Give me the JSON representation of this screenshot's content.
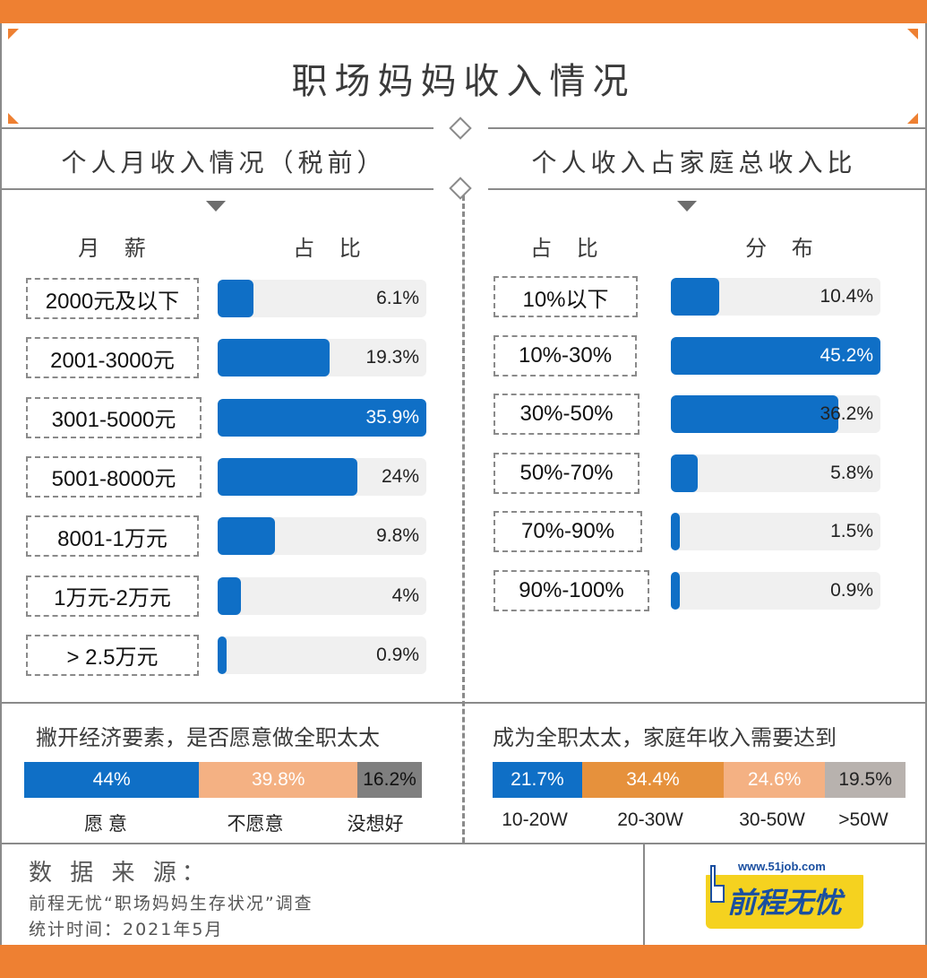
{
  "title": "职场妈妈收入情况",
  "left": {
    "section_title": "个人月收入情况（税前）",
    "col1": "月 薪",
    "col2": "占 比"
  },
  "right": {
    "section_title": "个人收入占家庭总收入比",
    "col1": "占 比",
    "col2": "分 布"
  },
  "q1": {
    "title": "撇开经济要素，是否愿意做全职太太"
  },
  "q2": {
    "title": "成为全职太太，家庭年收入需要达到"
  },
  "source": {
    "heading": "数 据 来 源：",
    "line1": "前程无忧“职场妈妈生存状况”调查",
    "line2": "统计时间：2021年5月"
  },
  "logo": {
    "url": "www.51job.com",
    "name": "前程无忧"
  },
  "colors": {
    "orange": "#ee8032",
    "blue": "#0f6fc6",
    "peach": "#f4b183",
    "gray": "#7f7f7f",
    "lightgray": "#b8b2ae",
    "amber": "#e6913c"
  },
  "chart_data": [
    {
      "type": "bar",
      "title": "个人月收入情况（税前）",
      "categories": [
        "2000元及以下",
        "2001-3000元",
        "3001-5000元",
        "5001-8000元",
        "8001-1万元",
        "1万元-2万元",
        "> 2.5万元"
      ],
      "values": [
        6.1,
        19.3,
        35.9,
        24,
        9.8,
        4,
        0.9
      ],
      "labels": [
        "6.1%",
        "19.3%",
        "35.9%",
        "24%",
        "9.8%",
        "4%",
        "0.9%"
      ],
      "max": 35.9
    },
    {
      "type": "bar",
      "title": "个人收入占家庭总收入比",
      "categories": [
        "10%以下",
        "10%-30%",
        "30%-50%",
        "50%-70%",
        "70%-90%",
        "90%-100%"
      ],
      "values": [
        10.4,
        45.2,
        36.2,
        5.8,
        1.5,
        0.9
      ],
      "labels": [
        "10.4%",
        "45.2%",
        "36.2%",
        "5.8%",
        "1.5%",
        "0.9%"
      ],
      "max": 45.2
    },
    {
      "type": "bar",
      "title": "撇开经济要素，是否愿意做全职太太",
      "categories": [
        "愿 意",
        "不愿意",
        "没想好"
      ],
      "values": [
        44,
        39.8,
        16.2
      ],
      "labels": [
        "44%",
        "39.8%",
        "16.2%"
      ],
      "colors": [
        "#0f6fc6",
        "#f4b183",
        "#7f7f7f"
      ]
    },
    {
      "type": "bar",
      "title": "成为全职太太，家庭年收入需要达到",
      "categories": [
        "10-20W",
        "20-30W",
        "30-50W",
        ">50W"
      ],
      "values": [
        21.7,
        34.4,
        24.6,
        19.5
      ],
      "labels": [
        "21.7%",
        "34.4%",
        "24.6%",
        "19.5%"
      ],
      "colors": [
        "#0f6fc6",
        "#e6913c",
        "#f4b183",
        "#b8b2ae"
      ]
    }
  ]
}
